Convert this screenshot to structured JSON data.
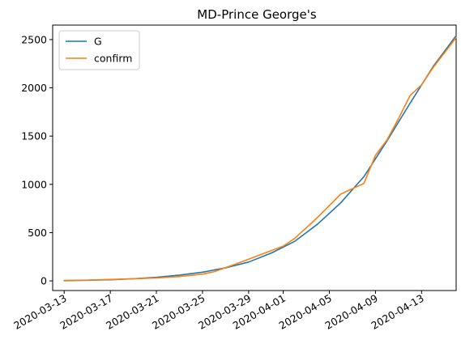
{
  "chart_data": {
    "type": "line",
    "title": "MD-Prince George's",
    "xlabel": "",
    "ylabel": "",
    "x_axis": "date",
    "xlim": [
      "2020-03-12",
      "2020-04-16"
    ],
    "ylim": [
      -100,
      2650
    ],
    "x_ticks": [
      "2020-03-13",
      "2020-03-17",
      "2020-03-21",
      "2020-03-25",
      "2020-03-29",
      "2020-04-01",
      "2020-04-05",
      "2020-04-09",
      "2020-04-13"
    ],
    "y_ticks": [
      0,
      500,
      1000,
      1500,
      2000,
      2500
    ],
    "grid": false,
    "legend": {
      "position": "top-left"
    },
    "series": [
      {
        "name": "G",
        "color": "#1f77b4",
        "points": [
          [
            "2020-03-13",
            2
          ],
          [
            "2020-03-15",
            6
          ],
          [
            "2020-03-17",
            12
          ],
          [
            "2020-03-19",
            22
          ],
          [
            "2020-03-21",
            37
          ],
          [
            "2020-03-23",
            60
          ],
          [
            "2020-03-25",
            90
          ],
          [
            "2020-03-27",
            135
          ],
          [
            "2020-03-29",
            195
          ],
          [
            "2020-03-31",
            290
          ],
          [
            "2020-04-02",
            410
          ],
          [
            "2020-04-04",
            590
          ],
          [
            "2020-04-06",
            810
          ],
          [
            "2020-04-08",
            1080
          ],
          [
            "2020-04-10",
            1450
          ],
          [
            "2020-04-12",
            1840
          ],
          [
            "2020-04-14",
            2220
          ],
          [
            "2020-04-16",
            2540
          ]
        ]
      },
      {
        "name": "confirm",
        "color": "#ff7f0e",
        "points": [
          [
            "2020-03-13",
            5
          ],
          [
            "2020-03-15",
            8
          ],
          [
            "2020-03-17",
            15
          ],
          [
            "2020-03-19",
            22
          ],
          [
            "2020-03-21",
            30
          ],
          [
            "2020-03-23",
            45
          ],
          [
            "2020-03-25",
            70
          ],
          [
            "2020-03-26",
            95
          ],
          [
            "2020-03-28",
            180
          ],
          [
            "2020-03-30",
            270
          ],
          [
            "2020-04-01",
            360
          ],
          [
            "2020-04-02",
            440
          ],
          [
            "2020-04-04",
            660
          ],
          [
            "2020-04-06",
            900
          ],
          [
            "2020-04-08",
            1010
          ],
          [
            "2020-04-09",
            1300
          ],
          [
            "2020-04-10",
            1460
          ],
          [
            "2020-04-11",
            1680
          ],
          [
            "2020-04-12",
            1920
          ],
          [
            "2020-04-13",
            2030
          ],
          [
            "2020-04-14",
            2210
          ],
          [
            "2020-04-16",
            2520
          ]
        ]
      }
    ]
  }
}
